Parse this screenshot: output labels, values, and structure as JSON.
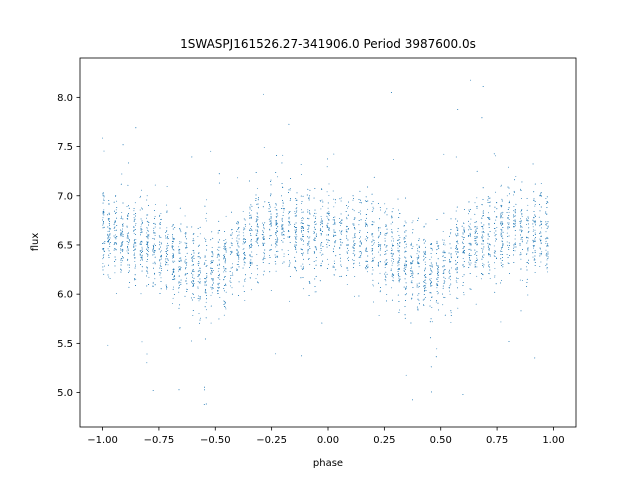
{
  "chart_data": {
    "type": "scatter",
    "title": "1SWASPJ161526.27-341906.0 Period 3987600.0s",
    "xlabel": "phase",
    "ylabel": "flux",
    "xlim": [
      -1.1,
      1.1
    ],
    "ylim": [
      4.65,
      8.4
    ],
    "xticks": [
      -1.0,
      -0.75,
      -0.5,
      -0.25,
      0.0,
      0.25,
      0.5,
      0.75,
      1.0
    ],
    "xtick_labels": [
      "−1.00",
      "−0.75",
      "−0.50",
      "−0.25",
      "0.00",
      "0.25",
      "0.50",
      "0.75",
      "1.00"
    ],
    "yticks": [
      5.0,
      5.5,
      6.0,
      6.5,
      7.0,
      7.5,
      8.0
    ],
    "ytick_labels": [
      "5.0",
      "5.5",
      "6.0",
      "6.5",
      "7.0",
      "7.5",
      "8.0"
    ],
    "grid": false,
    "point_color": "#1f77b4",
    "series": [
      {
        "light_curve_profile": {
          "phase": [
            0.0,
            0.05,
            0.1,
            0.15,
            0.2,
            0.25,
            0.3,
            0.35,
            0.4,
            0.45,
            0.5,
            0.55,
            0.6,
            0.65,
            0.7,
            0.75,
            0.8,
            0.85,
            0.9,
            0.95,
            1.0
          ],
          "median_flux": [
            6.65,
            6.6,
            6.55,
            6.55,
            6.5,
            6.45,
            6.4,
            6.3,
            6.25,
            6.2,
            6.25,
            6.35,
            6.45,
            6.55,
            6.6,
            6.65,
            6.7,
            6.65,
            6.6,
            6.6,
            6.65
          ]
        },
        "sample_points": {
          "phase": [
            -1.0,
            -0.95,
            -0.9,
            -0.85,
            -0.8,
            -0.75,
            -0.7,
            -0.65,
            -0.6,
            -0.55,
            -0.5,
            -0.45,
            -0.4,
            -0.35,
            -0.3,
            -0.25,
            -0.2,
            -0.15,
            -0.1,
            -0.05,
            0.0,
            0.05,
            0.1,
            0.15,
            0.2,
            0.25,
            0.3,
            0.35,
            0.4,
            0.45,
            0.5,
            0.55,
            0.6,
            0.65,
            0.7,
            0.75,
            0.8,
            0.85,
            0.9,
            0.95,
            1.0
          ],
          "flux": [
            6.65,
            6.6,
            6.55,
            6.55,
            6.5,
            6.45,
            6.4,
            6.3,
            6.25,
            6.2,
            6.25,
            6.35,
            6.45,
            6.55,
            6.6,
            6.65,
            6.7,
            6.65,
            6.6,
            6.6,
            6.65,
            6.6,
            6.55,
            6.55,
            6.5,
            6.45,
            6.4,
            6.3,
            6.25,
            6.2,
            6.25,
            6.35,
            6.45,
            6.55,
            6.6,
            6.65,
            6.7,
            6.65,
            6.6,
            6.6,
            6.65
          ]
        }
      }
    ]
  }
}
